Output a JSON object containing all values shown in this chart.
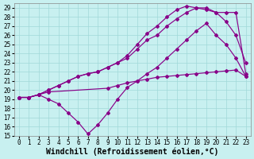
{
  "xlabel": "Windchill (Refroidissement éolien,°C)",
  "background_color": "#c8f0f0",
  "line_color": "#880088",
  "xlim": [
    -0.5,
    23.5
  ],
  "ylim": [
    15,
    29.5
  ],
  "xticks": [
    0,
    1,
    2,
    3,
    4,
    5,
    6,
    7,
    8,
    9,
    10,
    11,
    12,
    13,
    14,
    15,
    16,
    17,
    18,
    19,
    20,
    21,
    22,
    23
  ],
  "yticks": [
    15,
    16,
    17,
    18,
    19,
    20,
    21,
    22,
    23,
    24,
    25,
    26,
    27,
    28,
    29
  ],
  "line1_flat": {
    "x": [
      0,
      1,
      2,
      3,
      9,
      10,
      11,
      12,
      13,
      14,
      15,
      16,
      17,
      18,
      19,
      20,
      21,
      22,
      23
    ],
    "y": [
      19.2,
      19.2,
      19.5,
      19.8,
      20.2,
      20.5,
      20.8,
      21.0,
      21.2,
      21.4,
      21.5,
      21.6,
      21.7,
      21.8,
      21.9,
      22.0,
      22.1,
      22.2,
      21.5
    ]
  },
  "line2_zigzag": {
    "x": [
      0,
      1,
      2,
      3,
      4,
      5,
      6,
      7,
      8,
      9,
      10,
      11,
      12,
      13,
      14,
      15,
      16,
      17,
      18,
      19,
      20,
      21,
      22,
      23
    ],
    "y": [
      19.2,
      19.2,
      19.5,
      19.0,
      18.5,
      17.5,
      16.5,
      15.2,
      16.2,
      17.5,
      19.0,
      20.3,
      21.0,
      21.8,
      22.5,
      23.5,
      24.5,
      25.5,
      26.5,
      27.3,
      26.0,
      25.0,
      23.5,
      21.5
    ]
  },
  "line3_mid": {
    "x": [
      0,
      1,
      2,
      3,
      4,
      5,
      6,
      7,
      8,
      9,
      10,
      11,
      12,
      13,
      14,
      15,
      16,
      17,
      18,
      19,
      20,
      21,
      22,
      23
    ],
    "y": [
      19.2,
      19.2,
      19.5,
      20.0,
      20.5,
      21.0,
      21.5,
      21.8,
      22.0,
      22.5,
      23.0,
      23.5,
      24.5,
      25.5,
      26.0,
      27.0,
      27.8,
      28.5,
      29.0,
      29.0,
      28.5,
      27.5,
      26.0,
      23.0
    ]
  },
  "line4_top": {
    "x": [
      0,
      1,
      2,
      3,
      4,
      5,
      6,
      7,
      8,
      9,
      10,
      11,
      12,
      13,
      14,
      15,
      16,
      17,
      18,
      19,
      20,
      21,
      22,
      23
    ],
    "y": [
      19.2,
      19.2,
      19.5,
      20.0,
      20.5,
      21.0,
      21.5,
      21.8,
      22.0,
      22.5,
      23.0,
      23.8,
      25.0,
      26.2,
      27.0,
      28.0,
      28.8,
      29.2,
      29.0,
      28.8,
      28.5,
      28.5,
      28.5,
      21.8
    ]
  },
  "grid_color": "#a0d8d8",
  "tick_fontsize": 5.5,
  "xlabel_fontsize": 7,
  "marker": "D",
  "marker_size": 2.0,
  "linewidth": 0.85
}
